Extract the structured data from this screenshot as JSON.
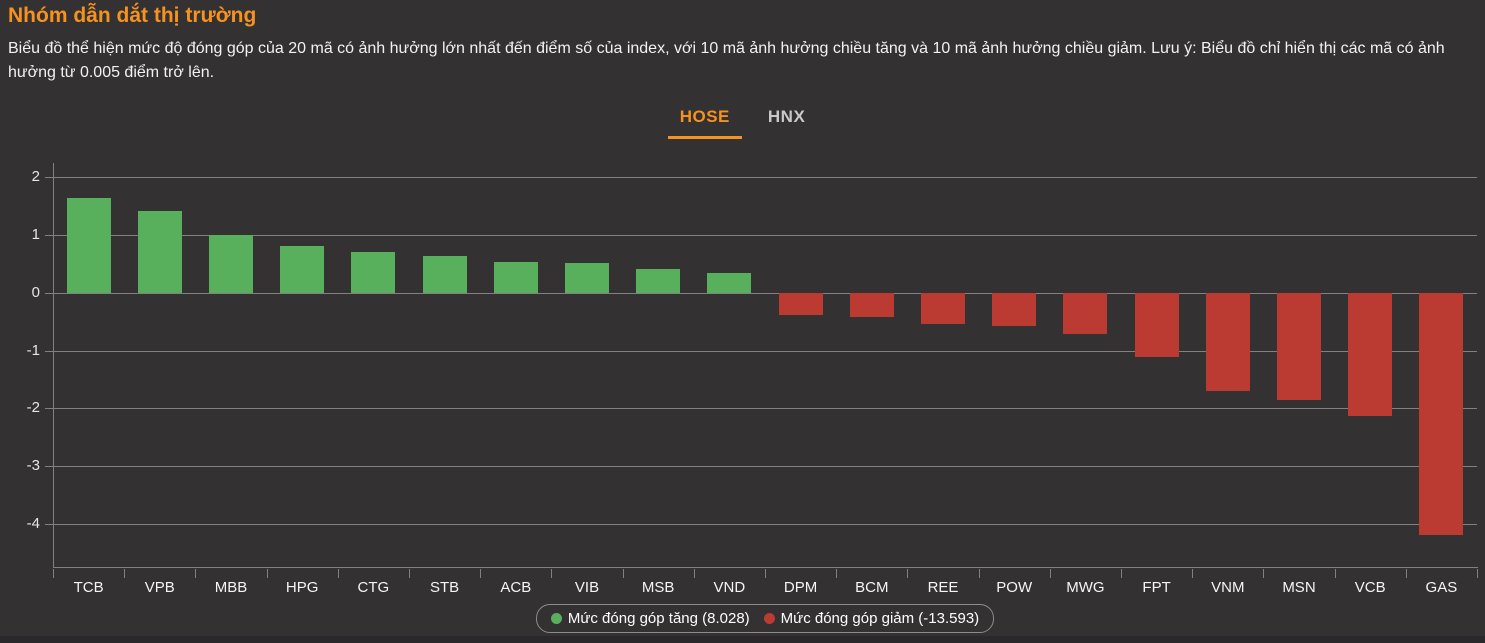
{
  "header": {
    "title": "Nhóm dẫn dắt thị trường",
    "description": "Biểu đồ thể hiện mức độ đóng góp của 20 mã có ảnh hưởng lớn nhất đến điểm số của index, với 10 mã ảnh hưởng chiều tăng và 10 mã ảnh hưởng chiều giảm. Lưu ý: Biểu đồ chỉ hiển thị các mã có ảnh hưởng từ 0.005 điểm trở lên."
  },
  "tabs": [
    {
      "label": "HOSE",
      "active": true
    },
    {
      "label": "HNX",
      "active": false
    }
  ],
  "theme": {
    "accent": "#f6921e",
    "positive": "#58b05c",
    "negative": "#bb3b33",
    "background": "#333132"
  },
  "chart_data": {
    "type": "bar",
    "title": "Nhóm dẫn dắt thị trường",
    "categories": [
      "TCB",
      "VPB",
      "MBB",
      "HPG",
      "CTG",
      "STB",
      "ACB",
      "VIB",
      "MSB",
      "VND",
      "DPM",
      "BCM",
      "REE",
      "POW",
      "MWG",
      "FPT",
      "VNM",
      "MSN",
      "VCB",
      "GAS"
    ],
    "values": [
      1.65,
      1.42,
      1.0,
      0.81,
      0.7,
      0.64,
      0.53,
      0.51,
      0.41,
      0.34,
      -0.39,
      -0.42,
      -0.54,
      -0.58,
      -0.71,
      -1.11,
      -1.7,
      -1.85,
      -2.13,
      -4.19
    ],
    "xlabel": "",
    "ylabel": "",
    "ylim": [
      -4.75,
      2.25
    ],
    "yticks": [
      2,
      1,
      0,
      -1,
      -2,
      -3,
      -4
    ],
    "grid": true,
    "legend_position": "bottom",
    "legend": [
      {
        "label": "Mức đóng góp tăng (8.028)",
        "color": "#58b05c"
      },
      {
        "label": "Mức đóng góp giảm (-13.593)",
        "color": "#bb3b33"
      }
    ]
  }
}
